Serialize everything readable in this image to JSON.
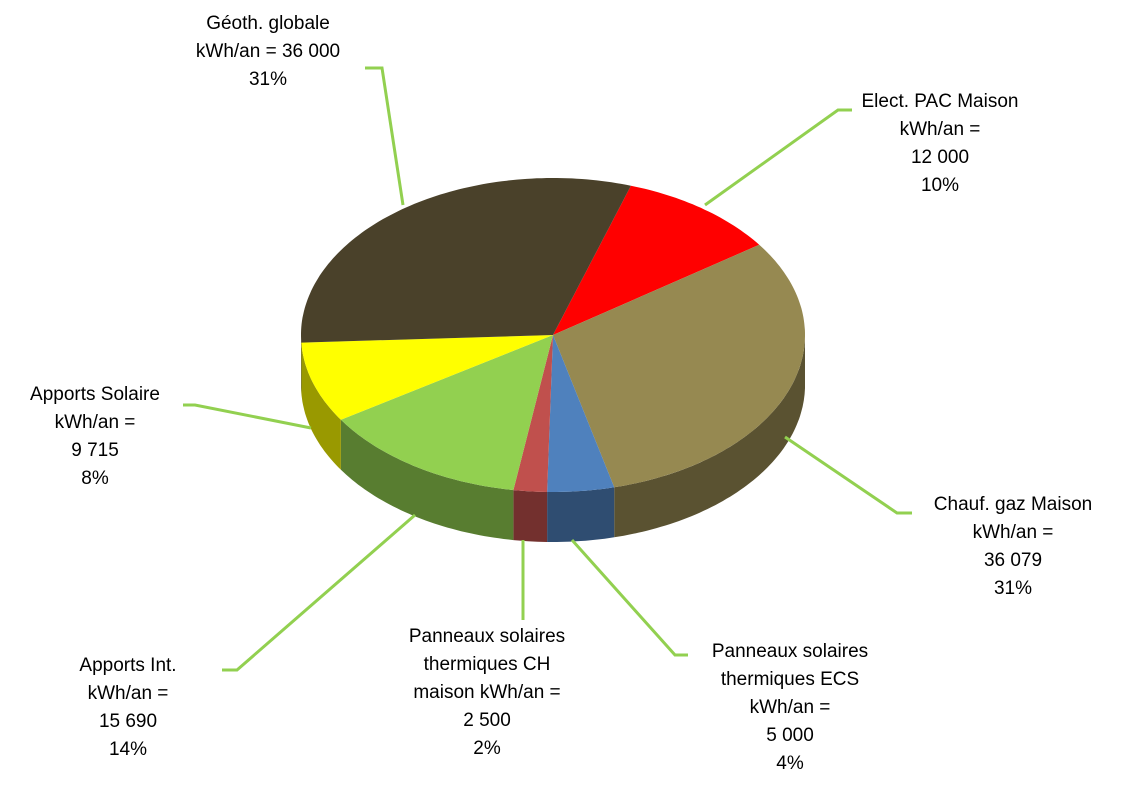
{
  "chart_data": {
    "type": "pie3d",
    "categories": [
      "Elect. PAC Maison",
      "Chauf. gaz Maison",
      "Panneaux solaires thermiques ECS",
      "Panneaux solaires thermiques CH maison",
      "Apports Int.",
      "Apports Solaire",
      "Géoth. globale"
    ],
    "unit_label": "kWh/an =",
    "values": [
      12000,
      36079,
      5000,
      2500,
      15690,
      9715,
      36000
    ],
    "value_labels": [
      "12 000",
      "36 079",
      "5 000",
      "2 500",
      "15 690",
      "9 715",
      "36 000"
    ],
    "percentages": [
      10,
      31,
      4,
      2,
      14,
      8,
      31
    ],
    "percentage_labels": [
      "10%",
      "31%",
      "4%",
      "2%",
      "14%",
      "8%",
      "31%"
    ],
    "colors": [
      "#ff0000",
      "#968951",
      "#4f81bd",
      "#c0504d",
      "#92d050",
      "#ffff00",
      "#4a412a"
    ],
    "leader_color": "#92d050"
  }
}
